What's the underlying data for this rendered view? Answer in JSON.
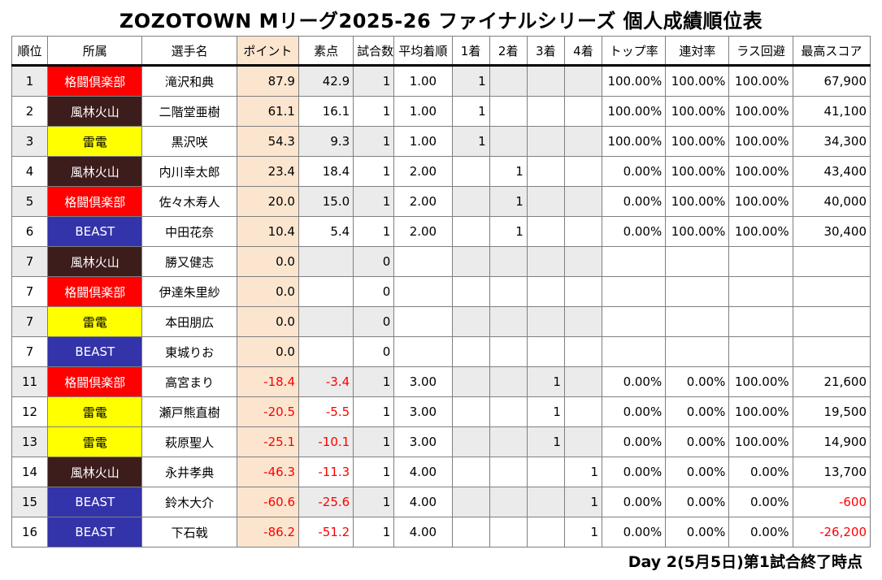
{
  "title": "ZOZOTOWN Mリーグ2025-26 ファイナルシリーズ 個人成績順位表",
  "columns": {
    "rank": "順位",
    "team": "所属",
    "name": "選手名",
    "points": "ポイント",
    "raw": "素点",
    "games": "試合数",
    "avg": "平均着順",
    "p1": "1着",
    "p2": "2着",
    "p3": "3着",
    "p4": "4着",
    "top_rate": "トップ率",
    "rentai": "連対率",
    "las_avoid": "ラス回避",
    "high": "最高スコア"
  },
  "team_colors": {
    "格闘倶楽部": {
      "bg": "#ff0000",
      "fg": "#ffffff"
    },
    "風林火山": {
      "bg": "#3d1c1c",
      "fg": "#ffffff"
    },
    "雷電": {
      "bg": "#ffff00",
      "fg": "#000000"
    },
    "BEAST": {
      "bg": "#3333aa",
      "fg": "#ffffff"
    }
  },
  "rows": [
    {
      "rank": "1",
      "team": "格闘倶楽部",
      "name": "滝沢和典",
      "points": "87.9",
      "raw": "42.9",
      "games": "1",
      "avg": "1.00",
      "p1": "1",
      "p2": "",
      "p3": "",
      "p4": "",
      "top_rate": "100.00%",
      "rentai": "100.00%",
      "las_avoid": "100.00%",
      "high": "67,900"
    },
    {
      "rank": "2",
      "team": "風林火山",
      "name": "二階堂亜樹",
      "points": "61.1",
      "raw": "16.1",
      "games": "1",
      "avg": "1.00",
      "p1": "1",
      "p2": "",
      "p3": "",
      "p4": "",
      "top_rate": "100.00%",
      "rentai": "100.00%",
      "las_avoid": "100.00%",
      "high": "41,100"
    },
    {
      "rank": "3",
      "team": "雷電",
      "name": "黒沢咲",
      "points": "54.3",
      "raw": "9.3",
      "games": "1",
      "avg": "1.00",
      "p1": "1",
      "p2": "",
      "p3": "",
      "p4": "",
      "top_rate": "100.00%",
      "rentai": "100.00%",
      "las_avoid": "100.00%",
      "high": "34,300"
    },
    {
      "rank": "4",
      "team": "風林火山",
      "name": "内川幸太郎",
      "points": "23.4",
      "raw": "18.4",
      "games": "1",
      "avg": "2.00",
      "p1": "",
      "p2": "1",
      "p3": "",
      "p4": "",
      "top_rate": "0.00%",
      "rentai": "100.00%",
      "las_avoid": "100.00%",
      "high": "43,400"
    },
    {
      "rank": "5",
      "team": "格闘倶楽部",
      "name": "佐々木寿人",
      "points": "20.0",
      "raw": "15.0",
      "games": "1",
      "avg": "2.00",
      "p1": "",
      "p2": "1",
      "p3": "",
      "p4": "",
      "top_rate": "0.00%",
      "rentai": "100.00%",
      "las_avoid": "100.00%",
      "high": "40,000"
    },
    {
      "rank": "6",
      "team": "BEAST",
      "name": "中田花奈",
      "points": "10.4",
      "raw": "5.4",
      "games": "1",
      "avg": "2.00",
      "p1": "",
      "p2": "1",
      "p3": "",
      "p4": "",
      "top_rate": "0.00%",
      "rentai": "100.00%",
      "las_avoid": "100.00%",
      "high": "30,400"
    },
    {
      "rank": "7",
      "team": "風林火山",
      "name": "勝又健志",
      "points": "0.0",
      "raw": "",
      "games": "0",
      "avg": "",
      "p1": "",
      "p2": "",
      "p3": "",
      "p4": "",
      "top_rate": "",
      "rentai": "",
      "las_avoid": "",
      "high": ""
    },
    {
      "rank": "7",
      "team": "格闘倶楽部",
      "name": "伊達朱里紗",
      "points": "0.0",
      "raw": "",
      "games": "0",
      "avg": "",
      "p1": "",
      "p2": "",
      "p3": "",
      "p4": "",
      "top_rate": "",
      "rentai": "",
      "las_avoid": "",
      "high": ""
    },
    {
      "rank": "7",
      "team": "雷電",
      "name": "本田朋広",
      "points": "0.0",
      "raw": "",
      "games": "0",
      "avg": "",
      "p1": "",
      "p2": "",
      "p3": "",
      "p4": "",
      "top_rate": "",
      "rentai": "",
      "las_avoid": "",
      "high": ""
    },
    {
      "rank": "7",
      "team": "BEAST",
      "name": "東城りお",
      "points": "0.0",
      "raw": "",
      "games": "0",
      "avg": "",
      "p1": "",
      "p2": "",
      "p3": "",
      "p4": "",
      "top_rate": "",
      "rentai": "",
      "las_avoid": "",
      "high": ""
    },
    {
      "rank": "11",
      "team": "格闘倶楽部",
      "name": "高宮まり",
      "points": "-18.4",
      "raw": "-3.4",
      "games": "1",
      "avg": "3.00",
      "p1": "",
      "p2": "",
      "p3": "1",
      "p4": "",
      "top_rate": "0.00%",
      "rentai": "0.00%",
      "las_avoid": "100.00%",
      "high": "21,600"
    },
    {
      "rank": "12",
      "team": "雷電",
      "name": "瀬戸熊直樹",
      "points": "-20.5",
      "raw": "-5.5",
      "games": "1",
      "avg": "3.00",
      "p1": "",
      "p2": "",
      "p3": "1",
      "p4": "",
      "top_rate": "0.00%",
      "rentai": "0.00%",
      "las_avoid": "100.00%",
      "high": "19,500"
    },
    {
      "rank": "13",
      "team": "雷電",
      "name": "萩原聖人",
      "points": "-25.1",
      "raw": "-10.1",
      "games": "1",
      "avg": "3.00",
      "p1": "",
      "p2": "",
      "p3": "1",
      "p4": "",
      "top_rate": "0.00%",
      "rentai": "0.00%",
      "las_avoid": "100.00%",
      "high": "14,900"
    },
    {
      "rank": "14",
      "team": "風林火山",
      "name": "永井孝典",
      "points": "-46.3",
      "raw": "-11.3",
      "games": "1",
      "avg": "4.00",
      "p1": "",
      "p2": "",
      "p3": "",
      "p4": "1",
      "top_rate": "0.00%",
      "rentai": "0.00%",
      "las_avoid": "0.00%",
      "high": "13,700"
    },
    {
      "rank": "15",
      "team": "BEAST",
      "name": "鈴木大介",
      "points": "-60.6",
      "raw": "-25.6",
      "games": "1",
      "avg": "4.00",
      "p1": "",
      "p2": "",
      "p3": "",
      "p4": "1",
      "top_rate": "0.00%",
      "rentai": "0.00%",
      "las_avoid": "0.00%",
      "high": "-600"
    },
    {
      "rank": "16",
      "team": "BEAST",
      "name": "下石戟",
      "points": "-86.2",
      "raw": "-51.2",
      "games": "1",
      "avg": "4.00",
      "p1": "",
      "p2": "",
      "p3": "",
      "p4": "1",
      "top_rate": "0.00%",
      "rentai": "0.00%",
      "las_avoid": "0.00%",
      "high": "-26,200"
    }
  ],
  "footer": "Day 2(5月5日)第1試合終了時点"
}
